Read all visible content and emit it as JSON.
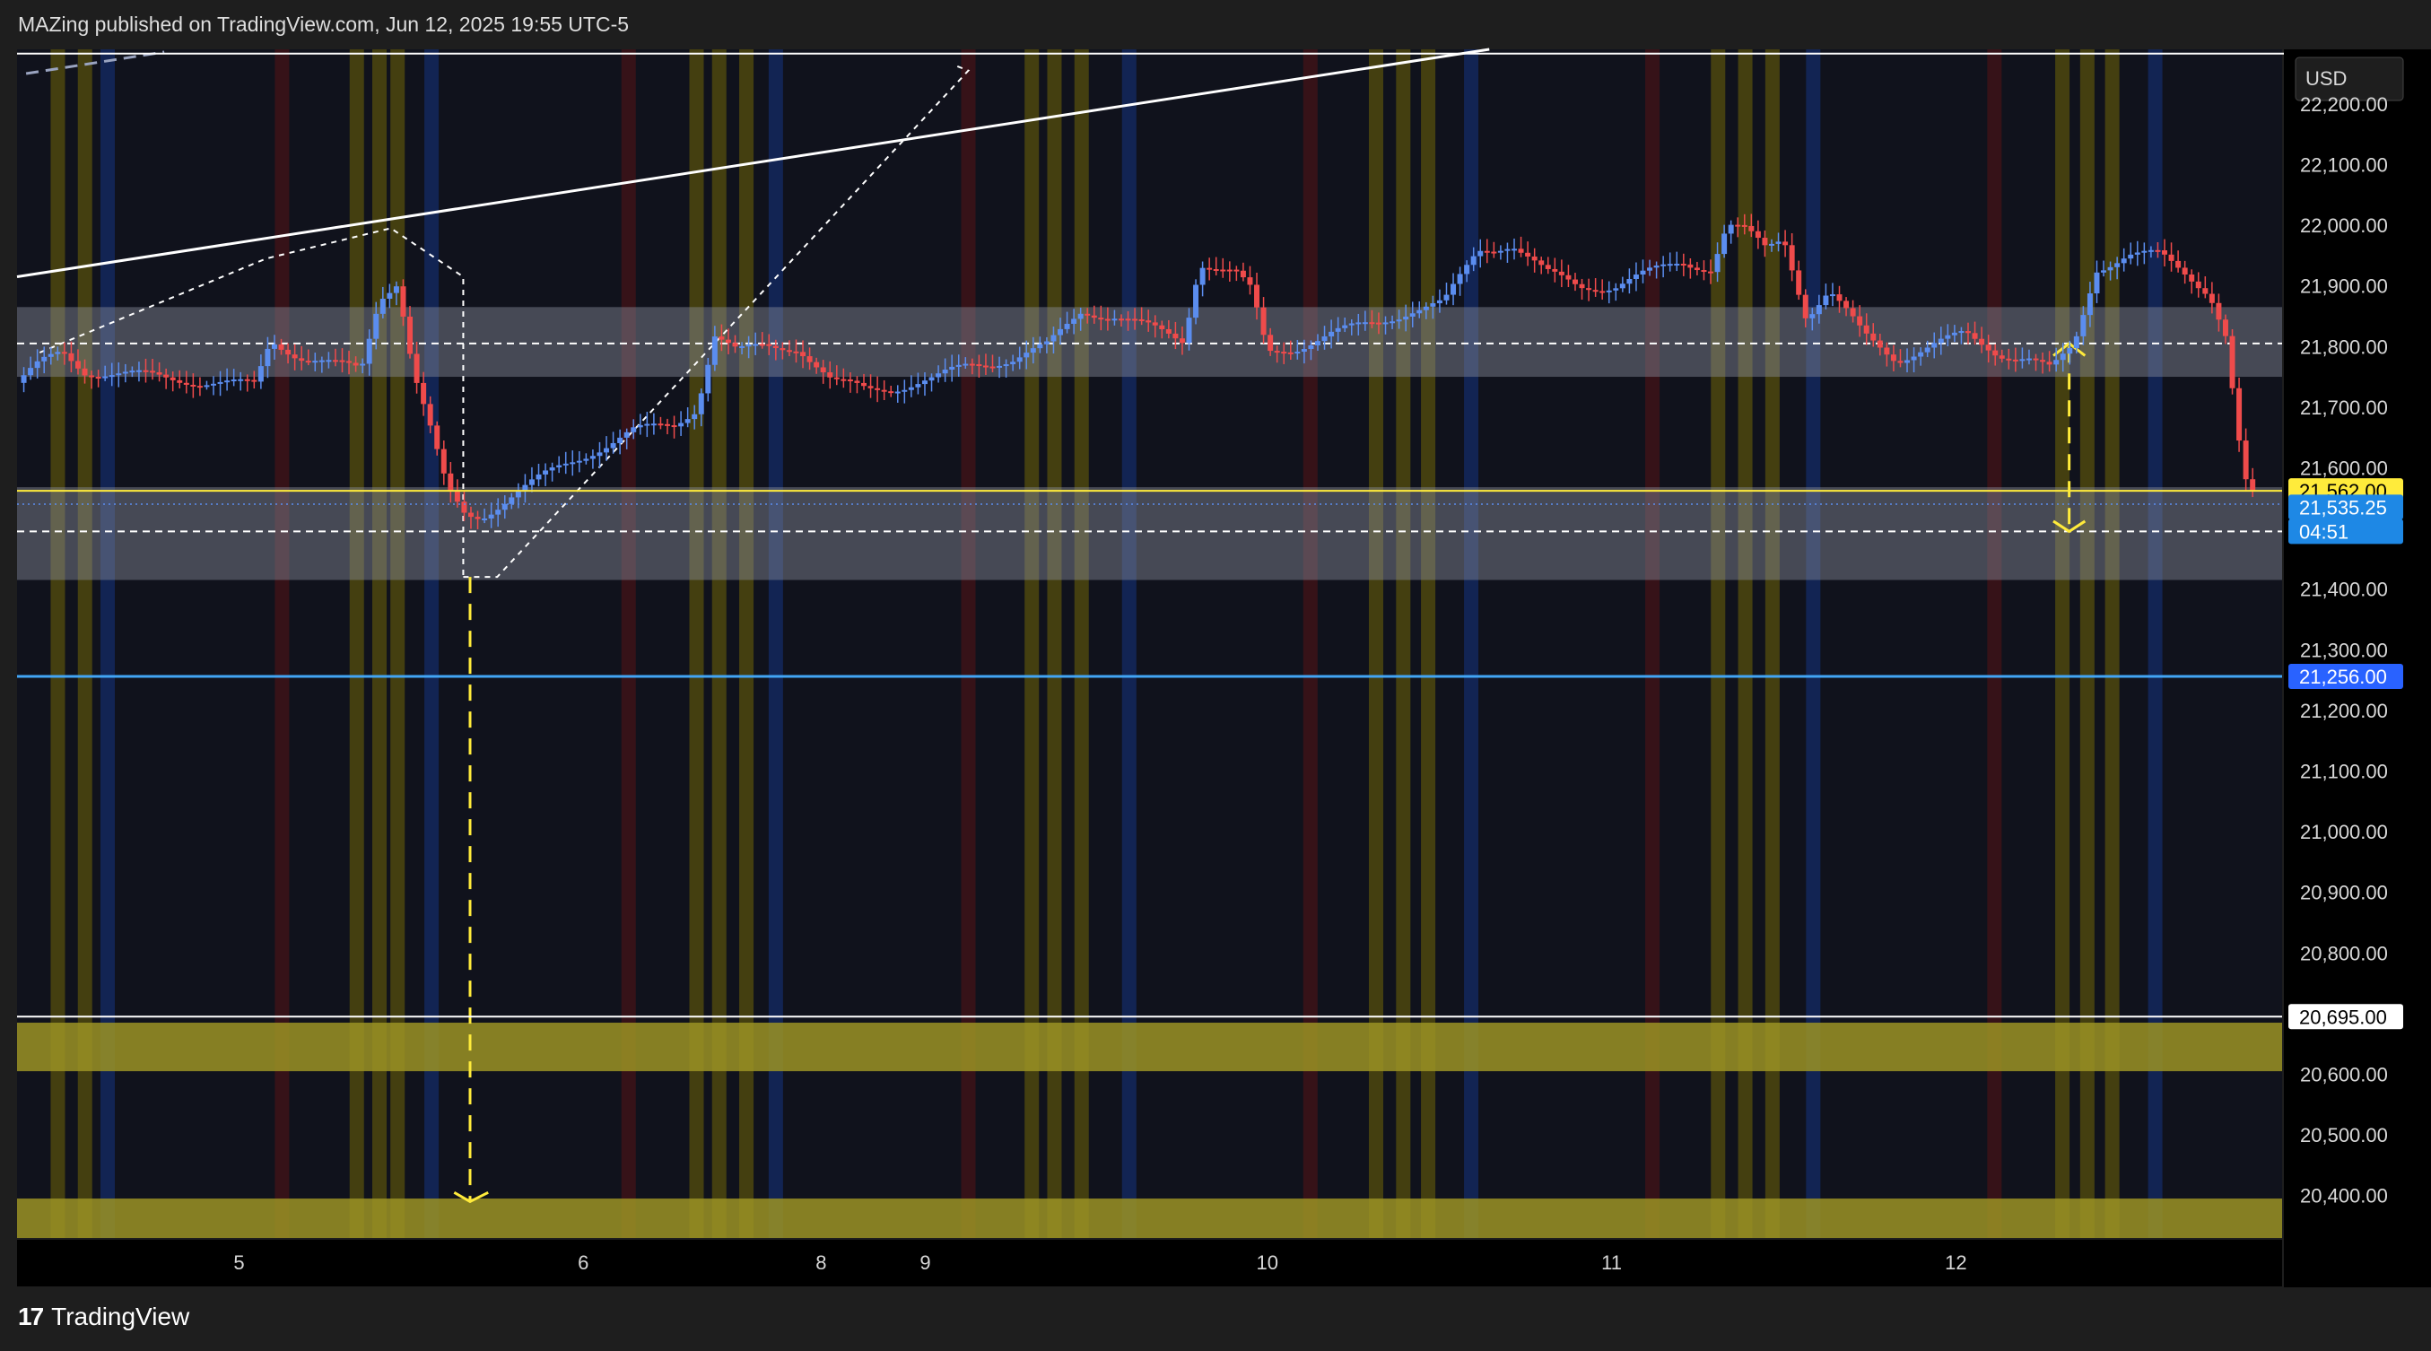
{
  "header": {
    "text": "MAZing published on TradingView.com, Jun 12, 2025 19:55 UTC-5"
  },
  "footer": {
    "brand": "TradingView",
    "logo_glyph": "17"
  },
  "chart_data": {
    "type": "candlestick",
    "currency": "USD",
    "ylim": [
      20330,
      22290
    ],
    "y_ticks": [
      20400,
      20500,
      20600,
      20700,
      20800,
      20900,
      21000,
      21100,
      21200,
      21300,
      21400,
      21500,
      21600,
      21700,
      21800,
      21900,
      22000,
      22100,
      22200
    ],
    "y_tick_labels": [
      "20,400.00",
      "20,500.00",
      "20,600.00",
      "20,700.00",
      "20,800.00",
      "20,900.00",
      "21,000.00",
      "21,100.00",
      "21,200.00",
      "21,300.00",
      "21,400.00",
      "21,500.00",
      "21,600.00",
      "21,700.00",
      "21,800.00",
      "21,900.00",
      "22,000.00",
      "22,100.00",
      "22,200.00"
    ],
    "x_labels": [
      {
        "label": "5",
        "t": 0.098
      },
      {
        "label": "6",
        "t": 0.25
      },
      {
        "label": "8",
        "t": 0.355
      },
      {
        "label": "9",
        "t": 0.401
      },
      {
        "label": "10",
        "t": 0.552
      },
      {
        "label": "11",
        "t": 0.704
      },
      {
        "label": "12",
        "t": 0.856
      }
    ],
    "session_bands": [
      {
        "t": 0.018,
        "color": "yellow"
      },
      {
        "t": 0.03,
        "color": "yellow"
      },
      {
        "t": 0.04,
        "color": "blue"
      },
      {
        "t": 0.117,
        "color": "red"
      },
      {
        "t": 0.15,
        "color": "yellow"
      },
      {
        "t": 0.16,
        "color": "yellow"
      },
      {
        "t": 0.168,
        "color": "yellow"
      },
      {
        "t": 0.183,
        "color": "blue"
      },
      {
        "t": 0.27,
        "color": "red"
      },
      {
        "t": 0.3,
        "color": "yellow"
      },
      {
        "t": 0.31,
        "color": "yellow"
      },
      {
        "t": 0.322,
        "color": "yellow"
      },
      {
        "t": 0.335,
        "color": "blue"
      },
      {
        "t": 0.42,
        "color": "red"
      },
      {
        "t": 0.448,
        "color": "yellow"
      },
      {
        "t": 0.458,
        "color": "yellow"
      },
      {
        "t": 0.47,
        "color": "yellow"
      },
      {
        "t": 0.491,
        "color": "blue"
      },
      {
        "t": 0.571,
        "color": "red"
      },
      {
        "t": 0.6,
        "color": "yellow"
      },
      {
        "t": 0.612,
        "color": "yellow"
      },
      {
        "t": 0.623,
        "color": "yellow"
      },
      {
        "t": 0.642,
        "color": "blue"
      },
      {
        "t": 0.722,
        "color": "red"
      },
      {
        "t": 0.751,
        "color": "yellow"
      },
      {
        "t": 0.763,
        "color": "yellow"
      },
      {
        "t": 0.775,
        "color": "yellow"
      },
      {
        "t": 0.793,
        "color": "blue"
      },
      {
        "t": 0.873,
        "color": "red"
      },
      {
        "t": 0.903,
        "color": "yellow"
      },
      {
        "t": 0.914,
        "color": "yellow"
      },
      {
        "t": 0.925,
        "color": "yellow"
      },
      {
        "t": 0.944,
        "color": "blue"
      }
    ],
    "price_path": [
      [
        0.0,
        21740
      ],
      [
        0.01,
        21770
      ],
      [
        0.02,
        21790
      ],
      [
        0.03,
        21760
      ],
      [
        0.045,
        21755
      ],
      [
        0.06,
        21750
      ],
      [
        0.075,
        21745
      ],
      [
        0.09,
        21740
      ],
      [
        0.105,
        21735
      ],
      [
        0.112,
        21810
      ],
      [
        0.125,
        21785
      ],
      [
        0.14,
        21770
      ],
      [
        0.152,
        21760
      ],
      [
        0.16,
        21880
      ],
      [
        0.168,
        21910
      ],
      [
        0.175,
        21760
      ],
      [
        0.182,
        21670
      ],
      [
        0.19,
        21560
      ],
      [
        0.198,
        21520
      ],
      [
        0.205,
        21520
      ],
      [
        0.22,
        21560
      ],
      [
        0.235,
        21590
      ],
      [
        0.255,
        21630
      ],
      [
        0.272,
        21660
      ],
      [
        0.29,
        21670
      ],
      [
        0.3,
        21700
      ],
      [
        0.308,
        21820
      ],
      [
        0.318,
        21790
      ],
      [
        0.33,
        21800
      ],
      [
        0.345,
        21800
      ],
      [
        0.36,
        21740
      ],
      [
        0.375,
        21730
      ],
      [
        0.39,
        21735
      ],
      [
        0.405,
        21745
      ],
      [
        0.42,
        21770
      ],
      [
        0.44,
        21780
      ],
      [
        0.455,
        21800
      ],
      [
        0.47,
        21860
      ],
      [
        0.485,
        21850
      ],
      [
        0.5,
        21830
      ],
      [
        0.515,
        21810
      ],
      [
        0.522,
        21940
      ],
      [
        0.538,
        21920
      ],
      [
        0.545,
        21890
      ],
      [
        0.552,
        21790
      ],
      [
        0.565,
        21800
      ],
      [
        0.58,
        21820
      ],
      [
        0.6,
        21840
      ],
      [
        0.615,
        21860
      ],
      [
        0.63,
        21870
      ],
      [
        0.645,
        21960
      ],
      [
        0.66,
        21970
      ],
      [
        0.675,
        21920
      ],
      [
        0.69,
        21900
      ],
      [
        0.705,
        21900
      ],
      [
        0.72,
        21920
      ],
      [
        0.735,
        21940
      ],
      [
        0.748,
        21930
      ],
      [
        0.755,
        22000
      ],
      [
        0.763,
        21990
      ],
      [
        0.772,
        21960
      ],
      [
        0.78,
        21980
      ],
      [
        0.79,
        21850
      ],
      [
        0.8,
        21890
      ],
      [
        0.815,
        21820
      ],
      [
        0.83,
        21780
      ],
      [
        0.845,
        21800
      ],
      [
        0.86,
        21820
      ],
      [
        0.875,
        21790
      ],
      [
        0.888,
        21780
      ],
      [
        0.898,
        21760
      ],
      [
        0.908,
        21800
      ],
      [
        0.918,
        21930
      ],
      [
        0.932,
        21950
      ],
      [
        0.946,
        21950
      ],
      [
        0.958,
        21920
      ],
      [
        0.968,
        21890
      ],
      [
        0.975,
        21820
      ],
      [
        0.983,
        21580
      ],
      [
        0.987,
        21553
      ]
    ],
    "levels": {
      "upper_zone": [
        21750,
        21865
      ],
      "upper_zone_mid": 21805,
      "lower_zone": [
        21415,
        21568
      ],
      "lower_zone_mid": 21495,
      "yellow_zone_1": [
        20605,
        20685
      ],
      "yellow_zone_2": [
        20330,
        20395
      ],
      "yellow_line": 21562,
      "blue_line": 21256,
      "white_line": 20695,
      "top_white_line": 22283,
      "dotted_blue": 21540
    },
    "price_tags": [
      {
        "label": "21,562.00",
        "value": 21562,
        "bg": "#ffeb3b",
        "fg": "#000000"
      },
      {
        "label": "21,535.25",
        "value": 21535,
        "bg": "#1e88e5",
        "fg": "#ffffff"
      },
      {
        "label": "04:51",
        "value": 21495,
        "bg": "#1e88e5",
        "fg": "#ffffff"
      },
      {
        "label": "21,256.00",
        "value": 21256,
        "bg": "#2962ff",
        "fg": "#ffffff"
      },
      {
        "label": "20,695.00",
        "value": 20695,
        "bg": "#ffffff",
        "fg": "#000000"
      }
    ],
    "colors": {
      "up": "#5b8def",
      "down": "#ef4b4b",
      "yellow_zone": "#9b9324",
      "grey_zone": "#8a8f9c"
    }
  }
}
